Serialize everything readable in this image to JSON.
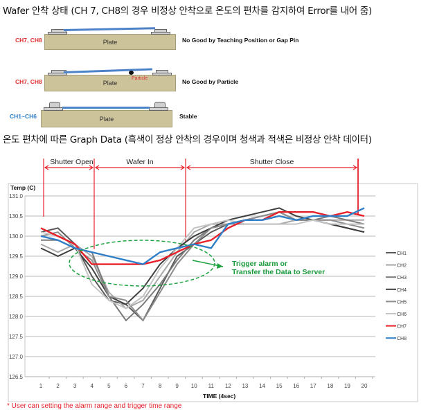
{
  "headings": {
    "wafer_status": "Wafer 안착 상태 (CH 7, CH8의 경우 비정상 안착으로 온도의 편차를 감지하여 Error를 내어 줌)",
    "graph_data": "온도 편차에 따른 Graph Data (흑색이 정상 안착의 경우이며 청색과 적색은 비정상 안착 데이터)"
  },
  "diagrams": [
    {
      "channels": "CH7, CH8",
      "channels_color": "#e03030",
      "plate_label": "Plate",
      "description": "No Good by Teaching Position or Gap Pin"
    },
    {
      "channels": "CH7, CH8",
      "channels_color": "#e03030",
      "plate_label": "Plate",
      "particle_label": "Particle",
      "description": "No Good by Particle"
    },
    {
      "channels": "CH1~CH6",
      "channels_color": "#2f7fc8",
      "plate_label": "Plate",
      "description": "Stable"
    }
  ],
  "phases": [
    {
      "label": "Shutter Open"
    },
    {
      "label": "Wafer In"
    },
    {
      "label": "Shutter Close"
    }
  ],
  "annotation": {
    "line1": "Trigger  alarm or",
    "line2": "Transfer the Data to Server",
    "color": "#1a9a3c"
  },
  "footnote": "* User can setting the alarm range and trigger time range",
  "chart_data": {
    "type": "line",
    "title": "",
    "xlabel": "TIME (4sec)",
    "ylabel": "Temp (C)",
    "x": [
      1,
      2,
      3,
      4,
      5,
      6,
      7,
      8,
      9,
      10,
      11,
      12,
      13,
      14,
      15,
      16,
      17,
      18,
      19,
      20
    ],
    "ylim": [
      126.5,
      131.0
    ],
    "yticks": [
      "131.0",
      "130.5",
      "130.0",
      "129.5",
      "129.0",
      "128.5",
      "128.0",
      "127.5",
      "127.0",
      "126.5"
    ],
    "grid": true,
    "legend_position": "right",
    "phase_markers_x": [
      1.2,
      4.1,
      9.5,
      19.9
    ],
    "series": [
      {
        "name": "CH1",
        "color": "#5a5a5a",
        "values": [
          130.1,
          130.2,
          129.8,
          129.0,
          128.4,
          128.3,
          127.9,
          128.7,
          129.5,
          129.8,
          130.1,
          130.3,
          130.4,
          130.4,
          130.5,
          130.4,
          130.4,
          130.3,
          130.2,
          130.1
        ]
      },
      {
        "name": "CH2",
        "color": "#a8a8a8",
        "values": [
          129.8,
          129.6,
          129.8,
          129.5,
          128.6,
          128.2,
          128.4,
          129.0,
          129.6,
          130.1,
          130.3,
          130.3,
          130.3,
          130.3,
          130.3,
          130.4,
          130.4,
          130.4,
          130.4,
          130.4
        ]
      },
      {
        "name": "CH3",
        "color": "#7a7a7a",
        "values": [
          129.9,
          129.9,
          129.7,
          129.6,
          128.5,
          127.9,
          128.3,
          128.8,
          129.4,
          129.9,
          130.2,
          130.3,
          130.4,
          130.5,
          130.6,
          130.4,
          130.4,
          130.5,
          130.4,
          130.3
        ]
      },
      {
        "name": "CH4",
        "color": "#3e3e3e",
        "values": [
          129.7,
          129.5,
          129.7,
          129.2,
          128.5,
          128.3,
          128.7,
          129.3,
          129.7,
          130.0,
          130.2,
          130.4,
          130.5,
          130.6,
          130.7,
          130.5,
          130.4,
          130.3,
          130.2,
          130.1
        ]
      },
      {
        "name": "CH5",
        "color": "#8c8c8c",
        "values": [
          130.0,
          130.1,
          129.7,
          129.4,
          128.5,
          128.4,
          127.9,
          128.6,
          129.3,
          129.8,
          130.2,
          130.3,
          130.4,
          130.5,
          130.6,
          130.4,
          130.4,
          130.4,
          130.3,
          130.2
        ]
      },
      {
        "name": "CH6",
        "color": "#c4c4c4",
        "values": [
          130.1,
          130.0,
          129.8,
          128.8,
          128.4,
          128.2,
          128.5,
          129.2,
          129.7,
          130.2,
          130.3,
          130.4,
          130.3,
          130.3,
          130.3,
          130.3,
          130.4,
          130.3,
          130.3,
          130.3
        ]
      },
      {
        "name": "CH7",
        "color": "#e8202a",
        "values": [
          130.2,
          130.0,
          129.8,
          129.3,
          129.3,
          129.3,
          129.3,
          129.4,
          129.6,
          129.8,
          129.9,
          130.2,
          130.4,
          130.4,
          130.6,
          130.6,
          130.6,
          130.5,
          130.6,
          130.5
        ]
      },
      {
        "name": "CH8",
        "color": "#2f7fc8",
        "values": [
          130.0,
          129.9,
          129.7,
          129.6,
          129.5,
          129.4,
          129.3,
          129.6,
          129.7,
          129.8,
          129.7,
          130.3,
          130.4,
          130.4,
          130.5,
          130.4,
          130.5,
          130.5,
          130.5,
          130.7
        ]
      }
    ]
  }
}
